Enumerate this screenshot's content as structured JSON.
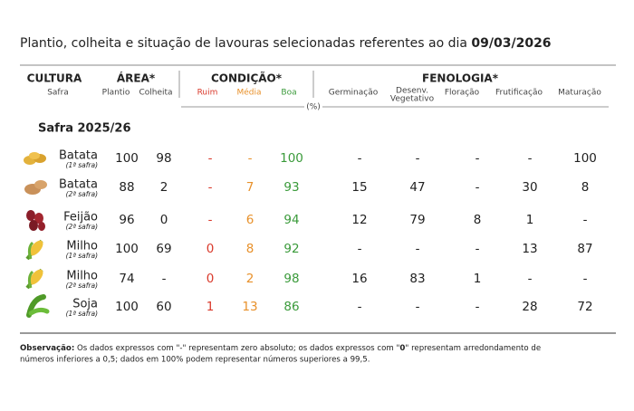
{
  "title": {
    "text": "Plantio, colheita e situação de lavouras selecionadas referentes ao dia ",
    "date": "09/03/2026"
  },
  "header": {
    "cultura": "CULTURA",
    "safra": "Safra",
    "area": "ÁREA*",
    "plantio": "Plantio",
    "colheita": "Colheita",
    "condicao": "CONDIÇÃO*",
    "ruim": "Ruim",
    "media": "Média",
    "boa": "Boa",
    "fenologia": "FENOLOGIA*",
    "germinacao": "Germinação",
    "desenv_1": "Desenv.",
    "desenv_2": "Vegetativo",
    "floracao": "Floração",
    "frutificacao": "Frutificação",
    "maturacao": "Maturação",
    "unit": "(%)"
  },
  "section": "Safra 2025/26",
  "rows": [
    {
      "crop": "Batata",
      "safra": "(1ª safra)",
      "cells": [
        100,
        98,
        "-",
        "-",
        100,
        "-",
        "-",
        "-",
        "-",
        100
      ]
    },
    {
      "crop": "Batata",
      "safra": "(2ª safra)",
      "cells": [
        88,
        2,
        "-",
        7,
        93,
        15,
        47,
        "-",
        30,
        8
      ]
    },
    {
      "crop": "Feijão",
      "safra": "(2ª safra)",
      "cells": [
        96,
        0,
        "-",
        6,
        94,
        12,
        79,
        8,
        1,
        "-"
      ]
    },
    {
      "crop": "Milho",
      "safra": "(1ª safra)",
      "cells": [
        100,
        69,
        0,
        8,
        92,
        "-",
        "-",
        "-",
        13,
        87
      ]
    },
    {
      "crop": "Milho",
      "safra": "(2ª safra)",
      "cells": [
        74,
        "-",
        0,
        2,
        98,
        16,
        83,
        1,
        "-",
        "-"
      ]
    },
    {
      "crop": "Soja",
      "safra": "(1ª safra)",
      "cells": [
        100,
        60,
        1,
        13,
        86,
        "-",
        "-",
        "-",
        28,
        72
      ]
    }
  ],
  "note": {
    "label": "Observação:",
    "parts": [
      "Os dados expressos com \"-\" representam zero absoluto; os dados expressos com \"",
      "0",
      "\" representam arredondamento de",
      "números inferiores a 0,5; dados em 100% podem representar números superiores a 99,5."
    ]
  }
}
